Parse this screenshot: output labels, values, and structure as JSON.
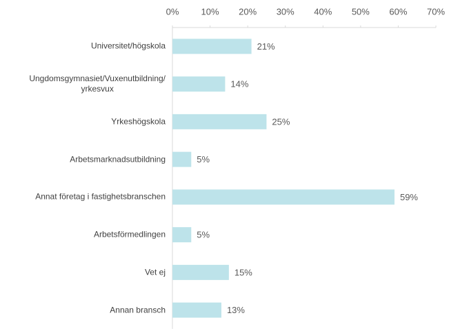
{
  "chart_data": {
    "type": "barh",
    "categories": [
      "Universitet/högskola",
      "Ungdomsgymnasiet/Vuxenutbildning/\nyrkesvux",
      "Yrkeshögskola",
      "Arbetsmarknadsutbildning",
      "Annat företag i fastighetsbranschen",
      "Arbetsförmedlingen",
      "Vet ej",
      "Annan bransch"
    ],
    "values": [
      21,
      14,
      25,
      5,
      59,
      5,
      15,
      13
    ],
    "value_labels": [
      "21%",
      "14%",
      "25%",
      "5%",
      "59%",
      "5%",
      "15%",
      "13%"
    ],
    "color": "#bde3ea",
    "xlim": [
      0,
      70
    ],
    "xticks": [
      {
        "value": 0,
        "label": "0%"
      },
      {
        "value": 10,
        "label": "10%"
      },
      {
        "value": 20,
        "label": "20%"
      },
      {
        "value": 30,
        "label": "30%"
      },
      {
        "value": 40,
        "label": "40%"
      },
      {
        "value": 50,
        "label": "50%"
      },
      {
        "value": 60,
        "label": "60%"
      },
      {
        "value": 70,
        "label": "70%"
      }
    ]
  }
}
